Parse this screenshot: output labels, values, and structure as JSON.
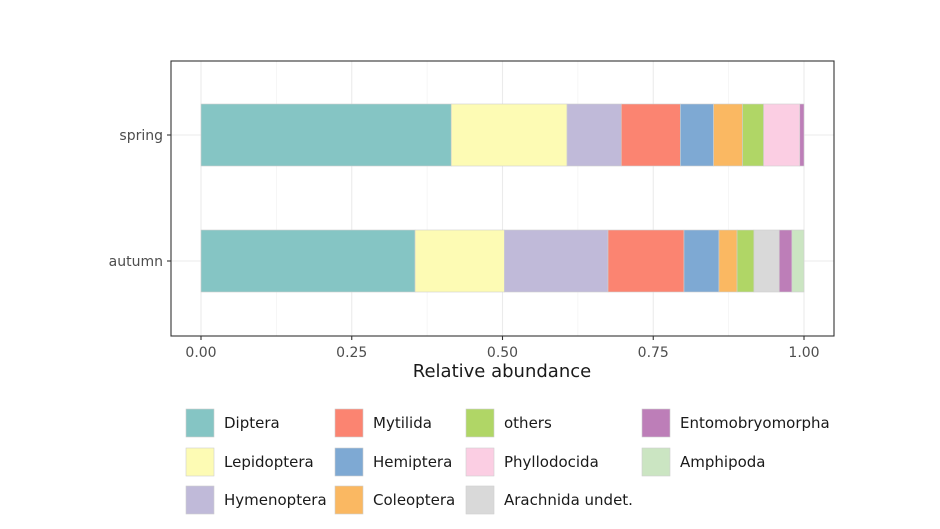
{
  "chart_data": {
    "type": "bar",
    "orientation": "horizontal",
    "stacked": true,
    "title": "",
    "xlabel": "Relative abundance",
    "ylabel": "",
    "xlim": [
      0,
      1
    ],
    "x_ticks": [
      "0.00",
      "0.25",
      "0.50",
      "0.75",
      "1.00"
    ],
    "categories": [
      "spring",
      "autumn"
    ],
    "grid": true,
    "legend_position": "bottom",
    "series": [
      {
        "name": "Diptera",
        "color": "#85c5c4",
        "values": [
          0.415,
          0.355
        ]
      },
      {
        "name": "Lepidoptera",
        "color": "#fdfbb4",
        "values": [
          0.192,
          0.148
        ]
      },
      {
        "name": "Hymenoptera",
        "color": "#c0bad9",
        "values": [
          0.09,
          0.172
        ]
      },
      {
        "name": "Mytilida",
        "color": "#fb8471",
        "values": [
          0.098,
          0.126
        ]
      },
      {
        "name": "Hemiptera",
        "color": "#7ea9d3",
        "values": [
          0.055,
          0.058
        ]
      },
      {
        "name": "Coleoptera",
        "color": "#fab862",
        "values": [
          0.048,
          0.03
        ]
      },
      {
        "name": "others",
        "color": "#b0d666",
        "values": [
          0.035,
          0.028
        ]
      },
      {
        "name": "Phyllodocida",
        "color": "#fbcee3",
        "values": [
          0.06,
          0.0
        ]
      },
      {
        "name": "Arachnida undet.",
        "color": "#d9d9d9",
        "values": [
          0.0,
          0.042
        ]
      },
      {
        "name": "Entomobryomorpha",
        "color": "#bd7eb8",
        "values": [
          0.007,
          0.021
        ]
      },
      {
        "name": "Amphipoda",
        "color": "#cbe5c2",
        "values": [
          0.0,
          0.02
        ]
      }
    ]
  }
}
